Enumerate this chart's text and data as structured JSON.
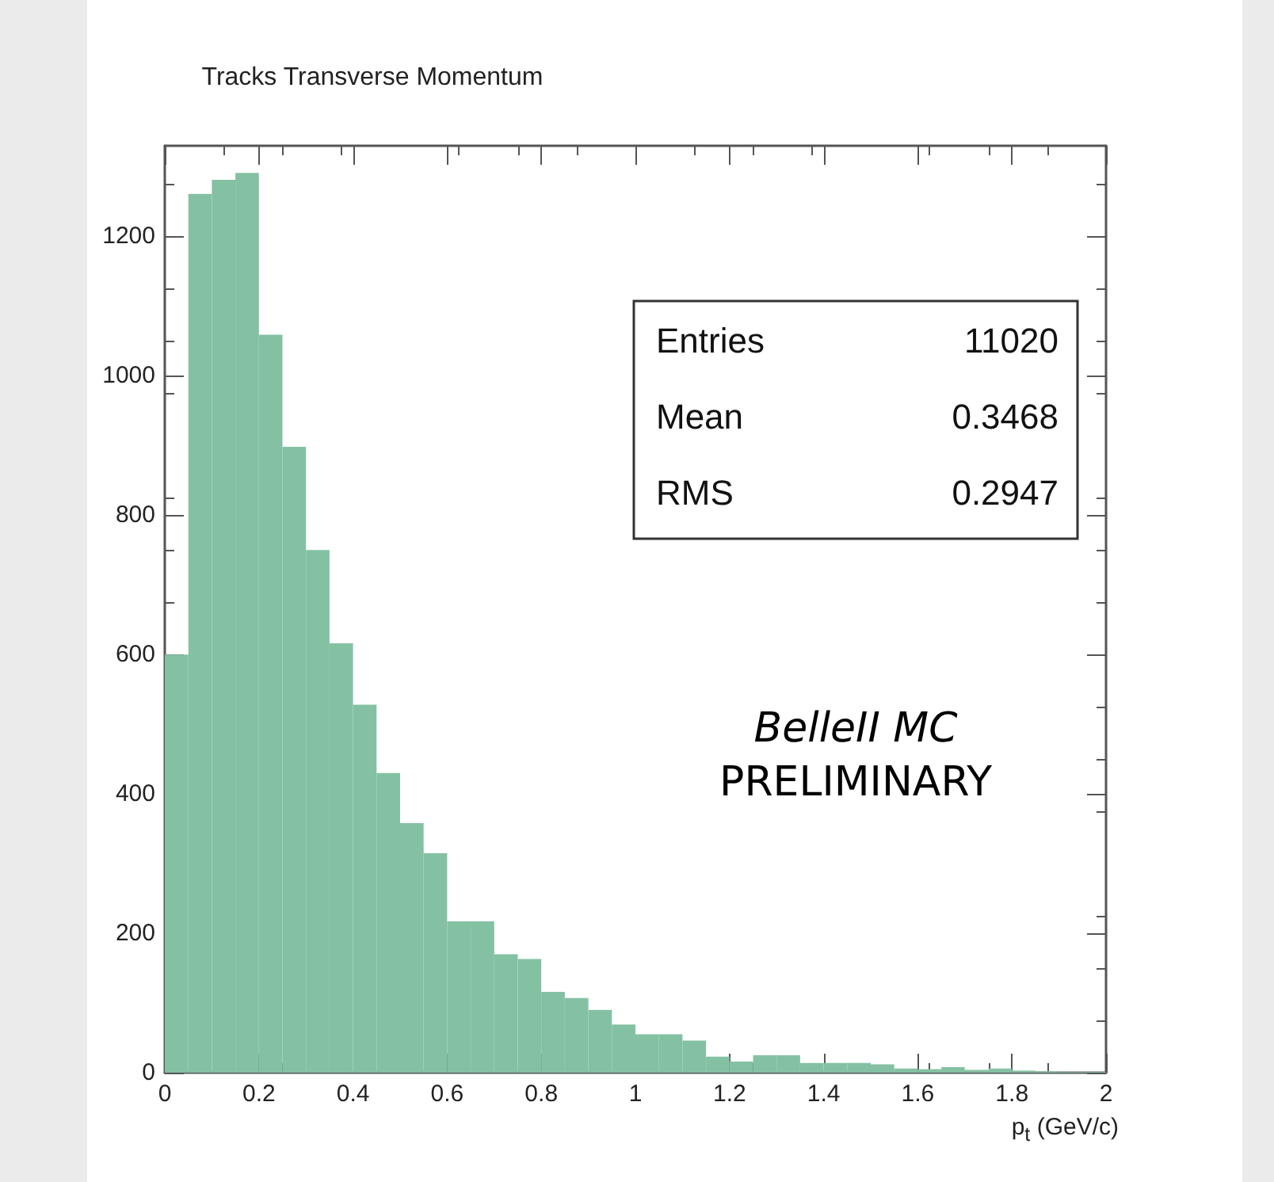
{
  "chart_data": {
    "type": "histogram",
    "title": "Tracks Transverse Momentum",
    "xlabel": "p$_{t}$ (GeV/c)",
    "bins": [
      0,
      0.05,
      0.1,
      0.15,
      0.2,
      0.25,
      0.3,
      0.35,
      0.4,
      0.45,
      0.5,
      0.55,
      0.6,
      0.65,
      0.7,
      0.75,
      0.8,
      0.85,
      0.9,
      0.95,
      1,
      1.05,
      1.1,
      1.15,
      1.2,
      1.25,
      1.3,
      1.35,
      1.4,
      1.45,
      1.5,
      1.55,
      1.6,
      1.65,
      1.7,
      1.75,
      1.8,
      1.85,
      1.9,
      1.95,
      2
    ],
    "values": [
      600,
      1261,
      1281,
      1291,
      1059,
      898,
      750,
      616,
      528,
      430,
      358,
      315,
      217,
      217,
      170,
      163,
      116,
      107,
      90,
      69,
      55,
      55,
      46,
      23,
      16,
      25,
      25,
      14,
      14,
      14,
      12,
      6,
      5,
      8,
      4,
      6,
      3,
      2,
      1,
      1
    ],
    "color": "#84c1a3",
    "xlim": [
      0,
      2
    ],
    "xticks": [
      0,
      0.2,
      0.4,
      0.6,
      0.8,
      1,
      1.2,
      1.4,
      1.6,
      1.8,
      2
    ],
    "ylim": [
      0,
      1330
    ],
    "yticks": [
      0,
      200,
      400,
      600,
      800,
      1000,
      1200
    ],
    "grid": false,
    "annotations": [
      "Entries 11020",
      "Mean 0.3468",
      "RMS 0.2947",
      "BelleII MC",
      "PRELIMINARY"
    ]
  }
}
